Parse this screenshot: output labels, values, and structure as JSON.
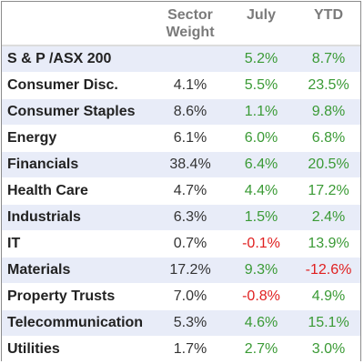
{
  "colors": {
    "positive": "#3a9a35",
    "negative": "#e02020",
    "band": "#e8ecf8",
    "header_text": "#7a7a7a"
  },
  "chart_data": {
    "type": "table",
    "columns": [
      "",
      "Sector Weight",
      "July",
      "YTD"
    ],
    "headers": {
      "weight_line1": "Sector",
      "weight_line2": "Weight",
      "july": "July",
      "ytd": "YTD"
    },
    "rows": [
      {
        "sector": "S & P /ASX 200",
        "weight": "",
        "july": "5.2%",
        "ytd": "8.7%",
        "july_value": 5.2,
        "ytd_value": 8.7
      },
      {
        "sector": "Consumer Disc.",
        "weight": "4.1%",
        "july": "5.5%",
        "ytd": "23.5%",
        "july_value": 5.5,
        "ytd_value": 23.5
      },
      {
        "sector": "Consumer Staples",
        "weight": "8.6%",
        "july": "1.1%",
        "ytd": "9.8%",
        "july_value": 1.1,
        "ytd_value": 9.8
      },
      {
        "sector": "Energy",
        "weight": "6.1%",
        "july": "6.0%",
        "ytd": "6.8%",
        "july_value": 6.0,
        "ytd_value": 6.8
      },
      {
        "sector": "Financials",
        "weight": "38.4%",
        "july": "6.4%",
        "ytd": "20.5%",
        "july_value": 6.4,
        "ytd_value": 20.5
      },
      {
        "sector": "Health Care",
        "weight": "4.7%",
        "july": "4.4%",
        "ytd": "17.2%",
        "july_value": 4.4,
        "ytd_value": 17.2
      },
      {
        "sector": "Industrials",
        "weight": "6.3%",
        "july": "1.5%",
        "ytd": "2.4%",
        "july_value": 1.5,
        "ytd_value": 2.4
      },
      {
        "sector": "IT",
        "weight": "0.7%",
        "july": "-0.1%",
        "ytd": "13.9%",
        "july_value": -0.1,
        "ytd_value": 13.9
      },
      {
        "sector": "Materials",
        "weight": "17.2%",
        "july": "9.3%",
        "ytd": "-12.6%",
        "july_value": 9.3,
        "ytd_value": -12.6
      },
      {
        "sector": "Property Trusts",
        "weight": "7.0%",
        "july": "-0.8%",
        "ytd": "4.9%",
        "july_value": -0.8,
        "ytd_value": 4.9
      },
      {
        "sector": "Telecommunication",
        "weight": "5.3%",
        "july": "4.6%",
        "ytd": "15.1%",
        "july_value": 4.6,
        "ytd_value": 15.1
      },
      {
        "sector": "Utilities",
        "weight": "1.7%",
        "july": "2.7%",
        "ytd": "3.0%",
        "july_value": 2.7,
        "ytd_value": 3.0
      }
    ]
  }
}
